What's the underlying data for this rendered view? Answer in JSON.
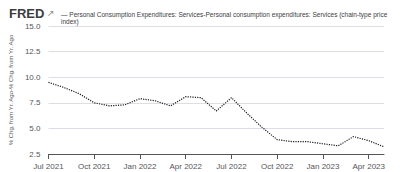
{
  "chart_data": {
    "type": "line",
    "title": "FRED",
    "annotations": [
      "↗"
    ],
    "subtitle": "— Personal Consumption Expenditures: Services-Personal consumption expenditures: Services (chain-type price index)",
    "ylabel": "% Chg. from Yr. Ago-% Chg. from Yr. Ago",
    "categories": [
      "Jul 2021",
      null,
      null,
      "Oct 2021",
      null,
      null,
      "Jan 2022",
      null,
      null,
      "Apr 2022",
      null,
      null,
      "Jul 2022",
      null,
      null,
      "Oct 2022",
      null,
      null,
      "Jan 2023",
      null,
      null,
      "Apr 2023",
      null
    ],
    "values": [
      9.5,
      9.0,
      8.4,
      7.5,
      7.2,
      7.3,
      7.9,
      7.7,
      7.2,
      8.1,
      8.0,
      6.7,
      8.0,
      6.5,
      5.1,
      3.9,
      3.7,
      3.7,
      3.5,
      3.3,
      4.2,
      3.8,
      3.2
    ],
    "color": "#1a1a1a",
    "line_style": "dotted",
    "ylim": [
      2.5,
      15.0
    ],
    "yticks": [
      2.5,
      {
        "value": 5.0,
        "label": "5.0"
      },
      7.5,
      {
        "value": 10.0,
        "label": "10.0"
      },
      12.5,
      {
        "value": 15.0,
        "label": "15.0"
      }
    ],
    "grid": true
  }
}
